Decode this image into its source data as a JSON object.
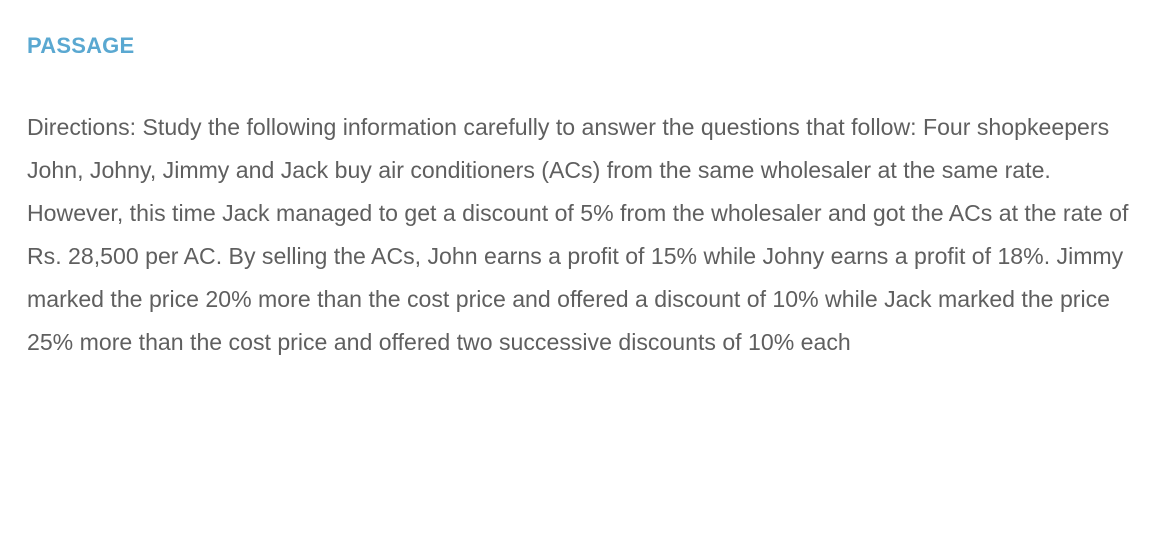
{
  "passage": {
    "heading": "PASSAGE",
    "text": "Directions: Study the following information carefully to answer the questions that follow: Four shopkeepers John, Johny, Jimmy and Jack buy air conditioners (ACs) from the same wholesaler at the same rate. However, this time Jack managed to get a discount of 5% from the wholesaler and got the ACs at the rate of Rs. 28,500 per AC. By selling the ACs, John earns a profit of 15% while Johny earns a profit of 18%. Jimmy marked the price 20% more than the cost price and offered a discount of 10% while Jack marked the price 25% more than the cost price and offered two successive discounts of 10% each"
  },
  "colors": {
    "heading": "#5aa8d1",
    "body_text": "#5f5f5f",
    "background": "#ffffff"
  }
}
